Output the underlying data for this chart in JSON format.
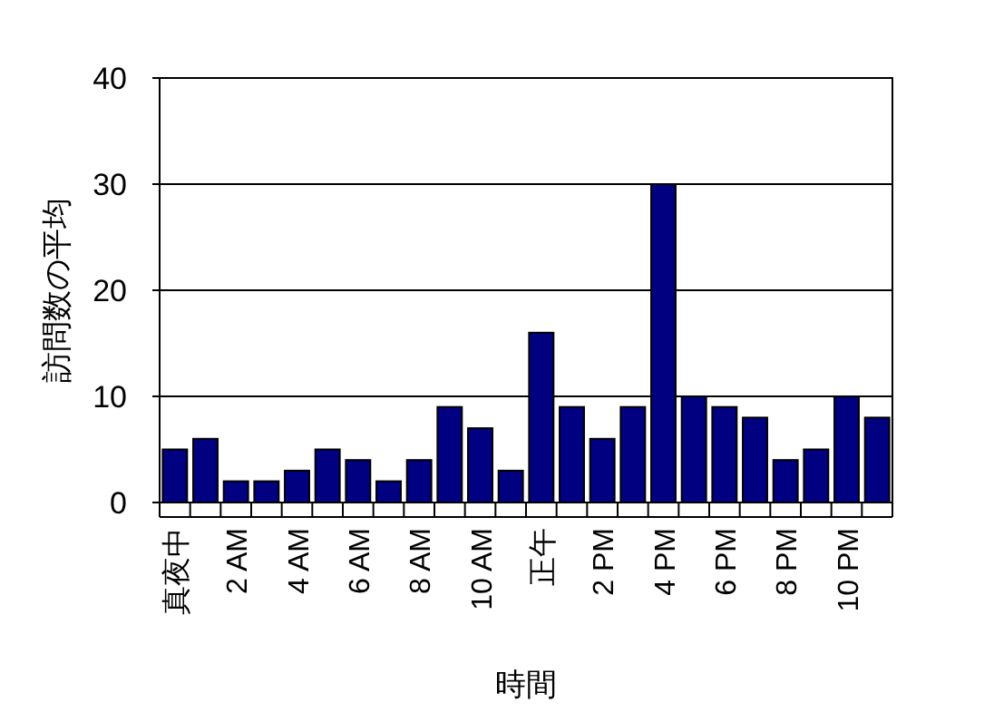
{
  "chart_data": {
    "type": "bar",
    "xlabel": "時間",
    "ylabel": "訪問数の平均",
    "categories": [
      "真夜中",
      null,
      "2 AM",
      null,
      "4 AM",
      null,
      "6 AM",
      null,
      "8 AM",
      null,
      "10 AM",
      null,
      "正午",
      null,
      "2 PM",
      null,
      "4 PM",
      null,
      "6 PM",
      null,
      "8 PM",
      null,
      "10 PM",
      null
    ],
    "values": [
      5,
      6,
      2,
      2,
      3,
      5,
      4,
      2,
      4,
      9,
      7,
      3,
      16,
      9,
      6,
      9,
      30,
      10,
      9,
      8,
      4,
      5,
      10,
      8
    ],
    "color": "#000080",
    "ylim": [
      0,
      40
    ],
    "yticks": [
      0,
      10,
      20,
      30,
      40
    ],
    "grid": "y"
  }
}
